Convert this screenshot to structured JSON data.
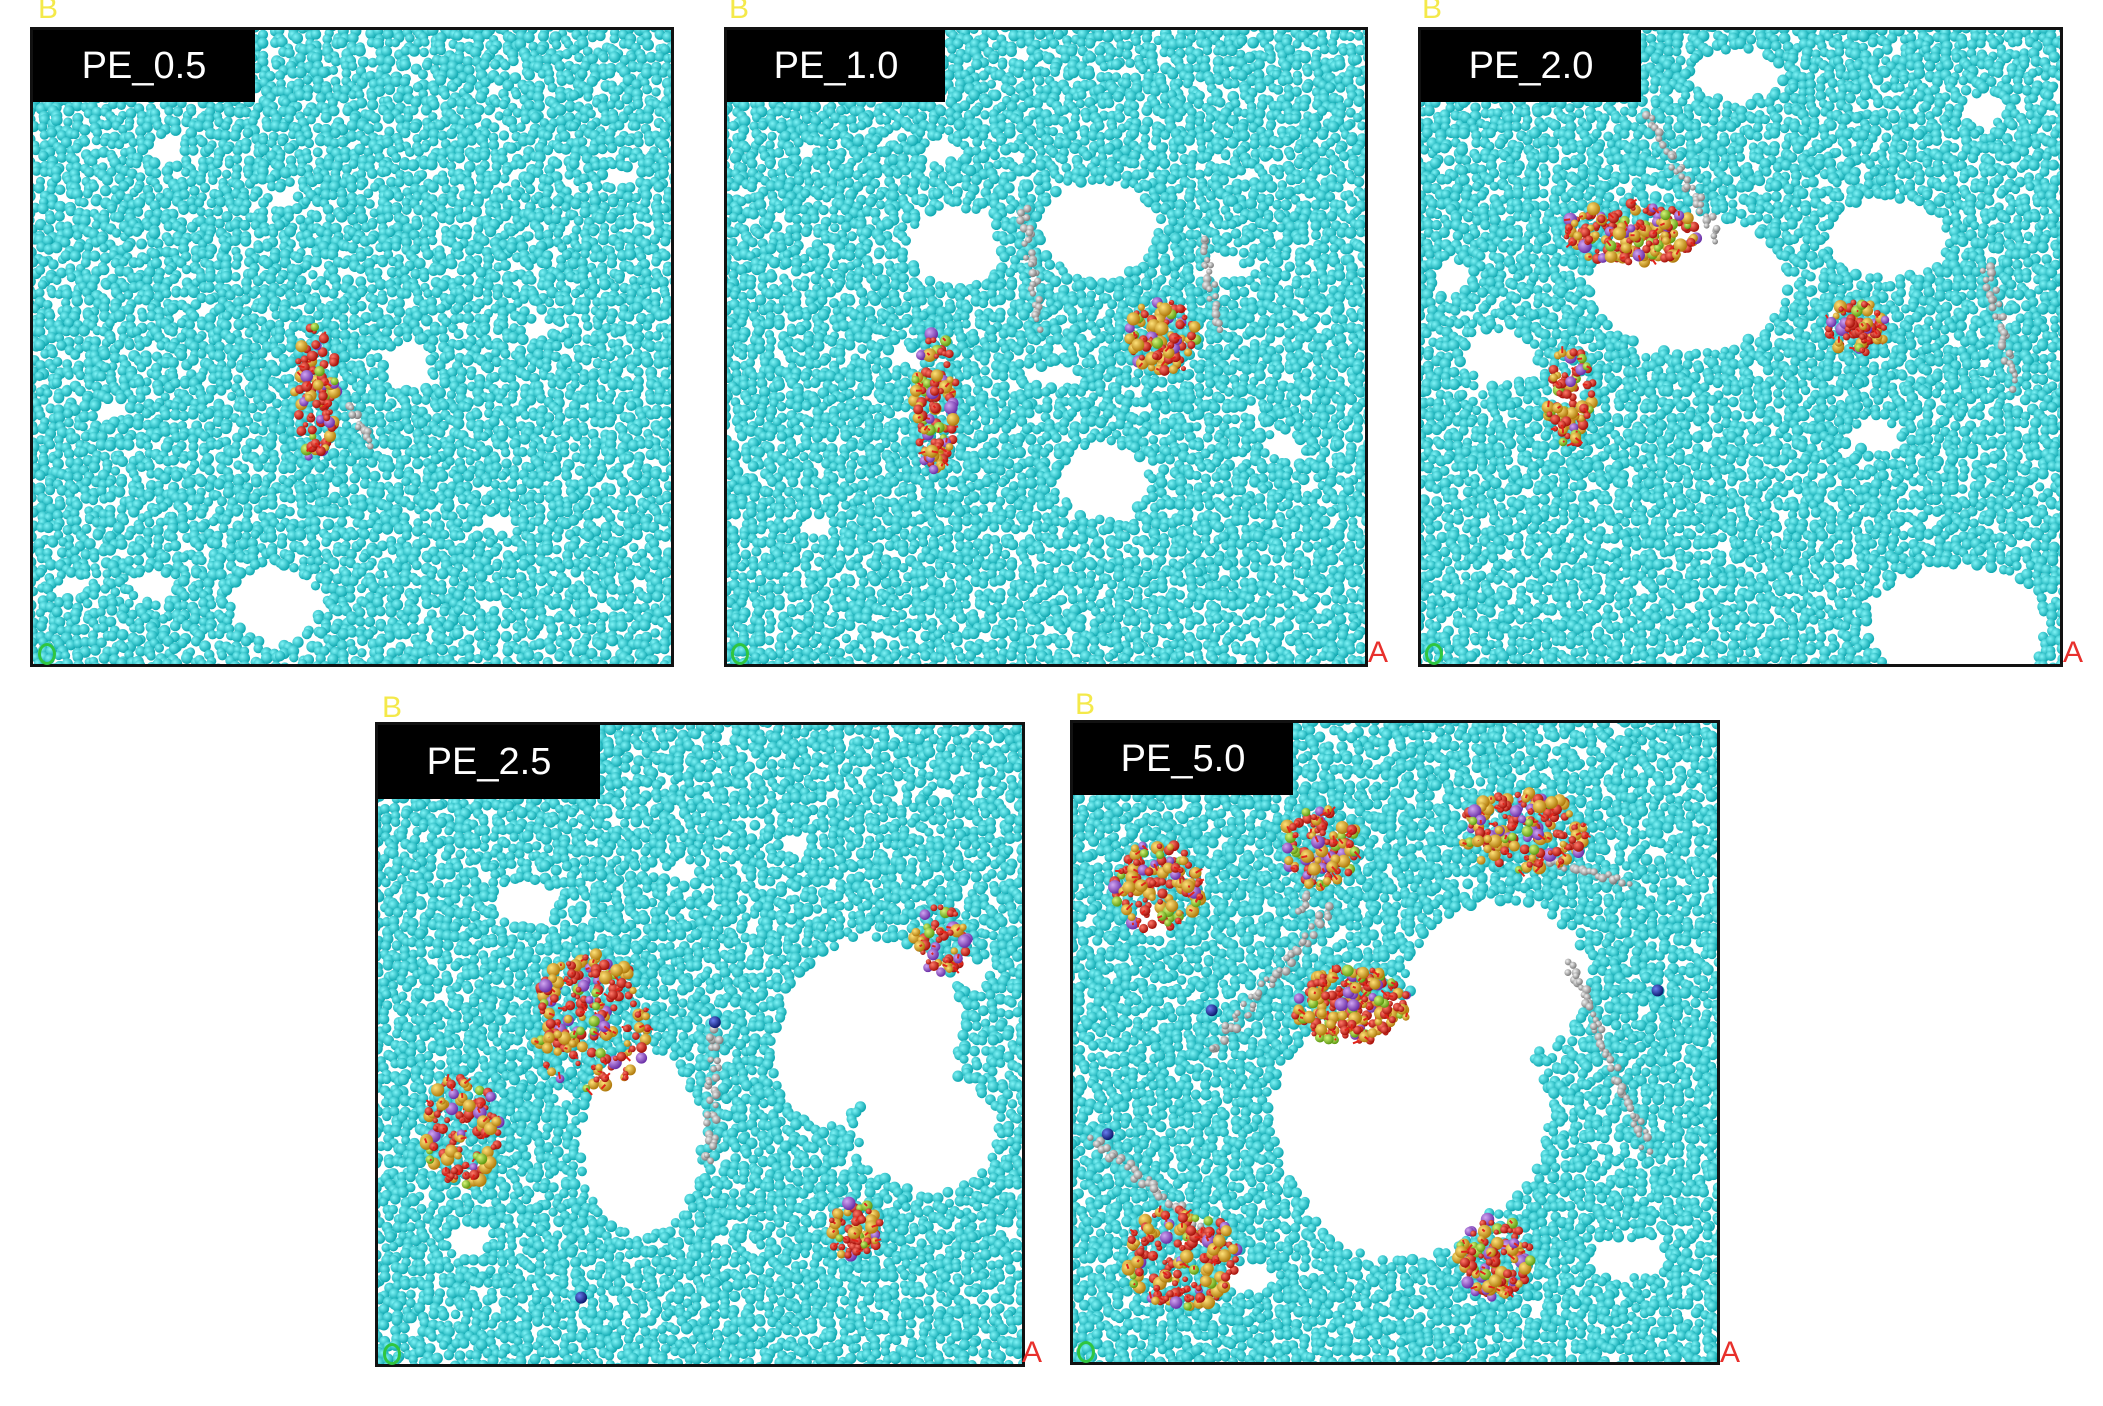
{
  "figure": {
    "panels": [
      {
        "id": "pe-0-5",
        "label": "PE_0.5"
      },
      {
        "id": "pe-1-0",
        "label": "PE_1.0"
      },
      {
        "id": "pe-2-0",
        "label": "PE_2.0"
      },
      {
        "id": "pe-2-5",
        "label": "PE_2.5"
      },
      {
        "id": "pe-5-0",
        "label": "PE_5.0"
      }
    ],
    "axis_labels": {
      "b": "B",
      "a": "A"
    },
    "colors": {
      "matrix_bead": "#1fd6dc",
      "matrix_bead_shade": "#0fa7b0",
      "additive_red": "#e2231a",
      "additive_gold": "#f0b428",
      "additive_purple": "#9b59d6",
      "additive_green": "#8fce2a",
      "chain_gray": "#b8b8b8",
      "ion_blue": "#1a2fb5",
      "frame": "#111111"
    }
  }
}
